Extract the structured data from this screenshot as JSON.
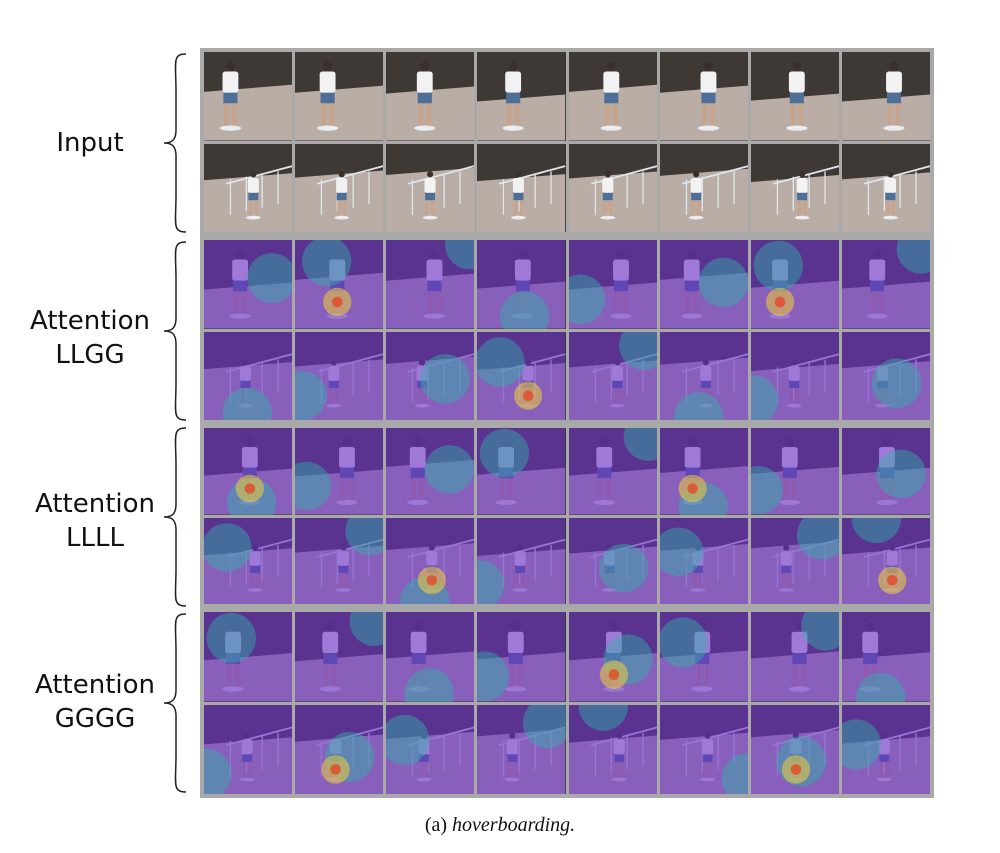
{
  "figure": {
    "caption_prefix": "(a)",
    "caption_text": "hoverboarding."
  },
  "rows": [
    {
      "key": "input",
      "label_line1": "Input",
      "label_line2": "",
      "kind": "input"
    },
    {
      "key": "llgg",
      "label_line1": "Attention",
      "label_line2": "LLGG",
      "kind": "attention"
    },
    {
      "key": "llll",
      "label_line1": "Attention",
      "label_line2": "LLLL",
      "kind": "attention"
    },
    {
      "key": "gggg",
      "label_line1": "Attention",
      "label_line2": "GGGG",
      "kind": "attention"
    }
  ],
  "colors": {
    "panel_border": "#a9a9a9",
    "attention_base": "#6a2ec8",
    "attention_mid": "#2fb3a8",
    "attention_hot": "#f0d03a",
    "attention_peak": "#e83a22",
    "scene_floor": "#b9ada5",
    "scene_wall": "#3f3936",
    "shirt": "#f2f2f2",
    "jeans": "#4d6e96"
  },
  "frames_per_row": 16
}
